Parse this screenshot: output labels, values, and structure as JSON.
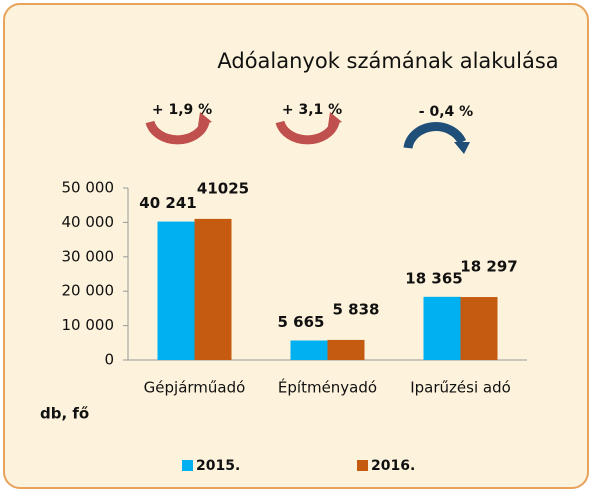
{
  "chart_data": {
    "type": "bar",
    "title": "Adóalanyok számának alakulása",
    "annotations": [
      "+ 1,9 %",
      "+ 3,1 %",
      "- 0,4 %"
    ],
    "y_label": "db, fő",
    "categories": [
      "Gépjárműadó",
      "Építményadó",
      "Iparűzési adó"
    ],
    "series": [
      {
        "name": "2015.",
        "color": "#00b0f0",
        "values": [
          40241,
          5665,
          18365
        ],
        "value_labels": [
          "40 241",
          "5 665",
          "18 365"
        ]
      },
      {
        "name": "2016.",
        "color": "#c55a11",
        "values": [
          41025,
          5838,
          18297
        ],
        "value_labels": [
          "41025",
          "5 838",
          "18 297"
        ]
      }
    ],
    "ylim": [
      0,
      50000
    ],
    "yticks": [
      {
        "value": 0,
        "label": "0"
      },
      {
        "value": 10000,
        "label": "10 000"
      },
      {
        "value": 20000,
        "label": "20 000"
      },
      {
        "value": 30000,
        "label": "30 000"
      },
      {
        "value": 40000,
        "label": "40 000"
      },
      {
        "value": 50000,
        "label": "50 000"
      }
    ],
    "legend": "bottom"
  }
}
